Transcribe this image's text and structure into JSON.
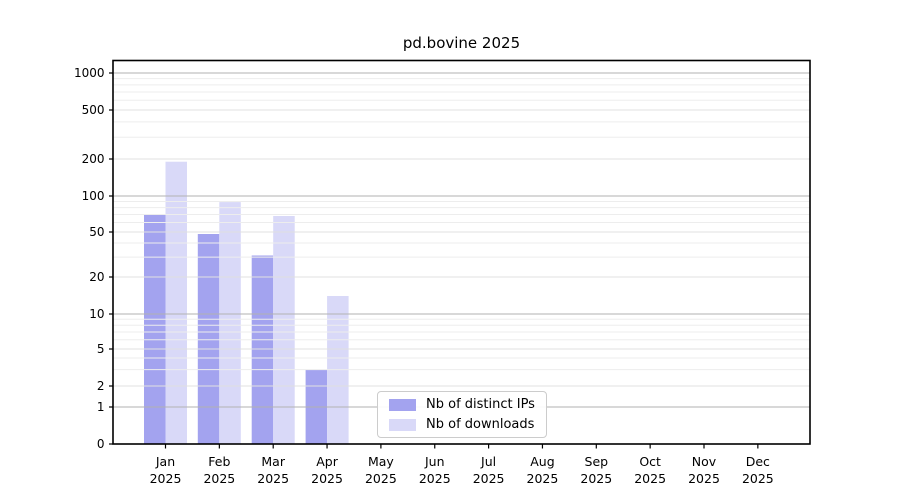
{
  "chart_data": {
    "type": "bar",
    "title": "pd.bovine 2025",
    "categories": [
      "Jan",
      "Feb",
      "Mar",
      "Apr",
      "May",
      "Jun",
      "Jul",
      "Aug",
      "Sep",
      "Oct",
      "Nov",
      "Dec"
    ],
    "category_year": "2025",
    "series": [
      {
        "name": "Nb of distinct IPs",
        "key": "distinct-ips",
        "color": "#a3a3ef",
        "values": [
          70,
          48,
          31,
          3,
          0,
          0,
          0,
          0,
          0,
          0,
          0,
          0
        ]
      },
      {
        "name": "Nb of downloads",
        "key": "downloads",
        "color": "#d9d9f8",
        "values": [
          190,
          89,
          68,
          14,
          0,
          0,
          0,
          0,
          0,
          0,
          0,
          0
        ]
      }
    ],
    "y_axis": {
      "scale": "symlog",
      "tick_values": [
        1000,
        500,
        200,
        100,
        50,
        20,
        10,
        5,
        2,
        1,
        0
      ],
      "tick_labels": [
        "1000",
        "500",
        "200",
        "100",
        "50",
        "20",
        "10",
        "5",
        "2",
        "1",
        "0"
      ],
      "ylim": [
        0,
        1400
      ]
    },
    "x_axis": {
      "label_line2": "2025"
    },
    "legend": {
      "position": "inside-bottom-center"
    },
    "grid": "horizontal log gridlines, drawn above bars",
    "colors": {
      "grid_major": "#b2b2b2",
      "grid_mid": "#e0e0e0",
      "grid_minor": "#ededed",
      "axis": "#000000"
    }
  }
}
